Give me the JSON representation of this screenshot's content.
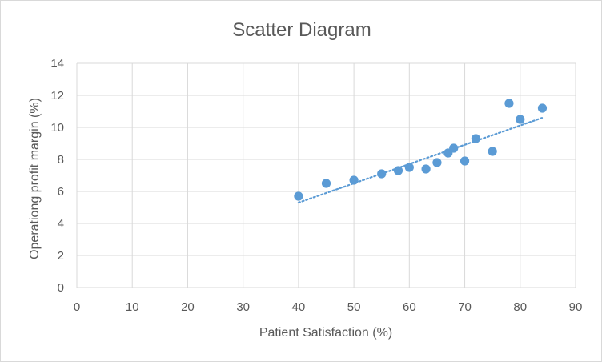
{
  "chart_data": {
    "type": "scatter",
    "title": "Scatter Diagram",
    "xlabel": "Patient Satisfaction (%)",
    "ylabel": "Operationg profit margin (%)",
    "xlim": [
      0,
      90
    ],
    "ylim": [
      0,
      14
    ],
    "x_ticks": [
      "0",
      "10",
      "20",
      "30",
      "40",
      "50",
      "60",
      "70",
      "80",
      "90"
    ],
    "y_ticks": [
      "0",
      "2",
      "4",
      "6",
      "8",
      "10",
      "12",
      "14"
    ],
    "grid": true,
    "legend": "none",
    "point_color": "#5b9bd5",
    "trendline": {
      "type": "linear",
      "style": "dotted",
      "color": "#5b9bd5",
      "start": [
        40,
        5.3
      ],
      "end": [
        84,
        10.6
      ]
    },
    "points": [
      {
        "x": 40,
        "y": 5.7
      },
      {
        "x": 45,
        "y": 6.5
      },
      {
        "x": 50,
        "y": 6.7
      },
      {
        "x": 55,
        "y": 7.1
      },
      {
        "x": 58,
        "y": 7.3
      },
      {
        "x": 60,
        "y": 7.5
      },
      {
        "x": 63,
        "y": 7.4
      },
      {
        "x": 65,
        "y": 7.8
      },
      {
        "x": 67,
        "y": 8.4
      },
      {
        "x": 68,
        "y": 8.7
      },
      {
        "x": 70,
        "y": 7.9
      },
      {
        "x": 72,
        "y": 9.3
      },
      {
        "x": 75,
        "y": 8.5
      },
      {
        "x": 78,
        "y": 11.5
      },
      {
        "x": 80,
        "y": 10.5
      },
      {
        "x": 84,
        "y": 11.2
      }
    ]
  }
}
